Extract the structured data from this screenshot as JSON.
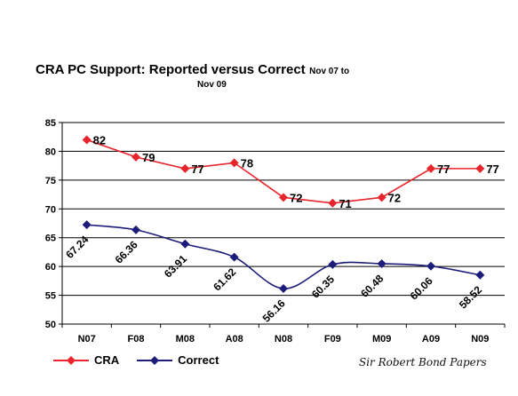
{
  "chart_data": {
    "type": "line",
    "title_main": "CRA PC Support:  Reported versus Correct",
    "title_sub": "Nov 07 to",
    "title_sub2": "Nov 09",
    "categories": [
      "N07",
      "F08",
      "M08",
      "A08",
      "N08",
      "F09",
      "M09",
      "A09",
      "N09"
    ],
    "ylim": [
      50,
      85
    ],
    "yticks": [
      50,
      55,
      60,
      65,
      70,
      75,
      80,
      85
    ],
    "grid": true,
    "legend_position": "bottom-left",
    "series": [
      {
        "name": "CRA",
        "color": "#e8242c",
        "smooth": false,
        "values": [
          82,
          79,
          77,
          78,
          72,
          71,
          72,
          77,
          77
        ],
        "labels": [
          "82",
          "79",
          "77",
          "78",
          "72",
          "71",
          "72",
          "77",
          "77"
        ]
      },
      {
        "name": "Correct",
        "color": "#1c1c7a",
        "smooth": true,
        "values": [
          67.24,
          66.36,
          63.91,
          61.62,
          56.16,
          60.35,
          60.48,
          60.06,
          58.52
        ],
        "labels": [
          "67.24",
          "66.36",
          "63.91",
          "61.62",
          "56.16",
          "60.35",
          "60.48",
          "60.06",
          "58.52"
        ]
      }
    ]
  },
  "credit": "Sir Robert Bond Papers"
}
